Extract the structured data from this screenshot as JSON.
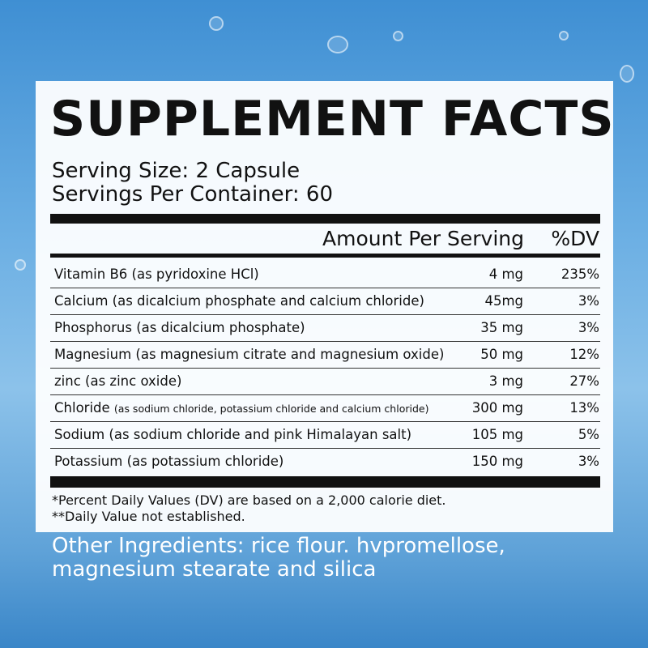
{
  "title": "SUPPLEMENT FACTS",
  "serving_size": "Serving Size: 2 Capsule",
  "servings_per_container": "Servings Per Container: 60",
  "header": {
    "amount": "Amount Per Serving",
    "dv": "%DV"
  },
  "rows": [
    {
      "name": "Vitamin B6",
      "detail": "(as pyridoxine HCl)",
      "amount": "4 mg",
      "dv": "235%"
    },
    {
      "name": "Calcium",
      "detail": "(as dicalcium phosphate and calcium chloride)",
      "amount": "45mg",
      "dv": "3%"
    },
    {
      "name": "Phosphorus",
      "detail": "(as dicalcium phosphate)",
      "amount": "35 mg",
      "dv": "3%"
    },
    {
      "name": "Magnesium",
      "detail": "(as magnesium citrate and magnesium oxide)",
      "amount": "50 mg",
      "dv": "12%"
    },
    {
      "name": "zinc",
      "detail": "(as zinc oxide)",
      "amount": "3 mg",
      "dv": "27%"
    },
    {
      "name": "Chloride",
      "detail": "(as sodium chloride, potassium chloride and calcium chloride)",
      "amount": "300 mg",
      "dv": "13%"
    },
    {
      "name": "Sodium",
      "detail": "(as sodium chloride and pink Himalayan salt)",
      "amount": "105 mg",
      "dv": "5%"
    },
    {
      "name": "Potassium",
      "detail": "(as potassium chloride)",
      "amount": "150 mg",
      "dv": "3%"
    }
  ],
  "footnotes": [
    "*Percent Daily Values (DV) are based on a 2,000 calorie diet.",
    "**Daily Value not established."
  ],
  "other_ingredients": "Other Ingredients: rice flour. hvpromellose, magnesium stearate and silica"
}
